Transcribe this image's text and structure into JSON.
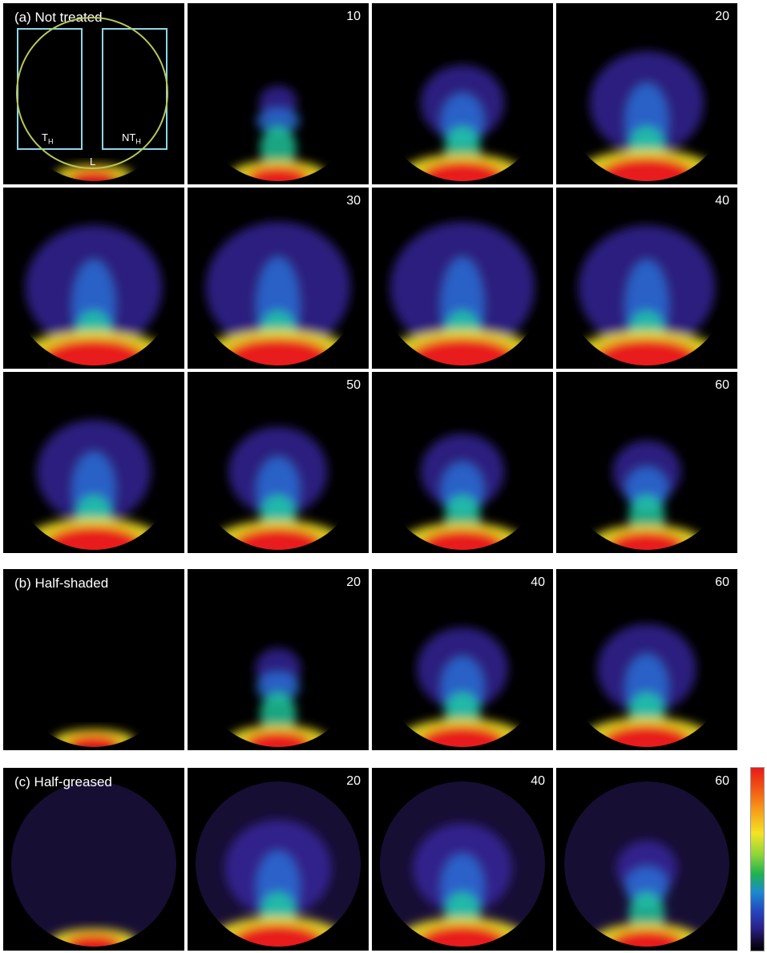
{
  "sections": [
    {
      "label": "(a) Not treated",
      "rows": 3
    },
    {
      "label": "(b) Half-shaded",
      "rows": 1
    },
    {
      "label": "(c) Half-greased",
      "rows": 1
    }
  ],
  "panels_a": [
    {
      "number": "",
      "level": 0.05
    },
    {
      "number": "10",
      "level": 0.25
    },
    {
      "number": "",
      "level": 0.55
    },
    {
      "number": "20",
      "level": 0.75
    },
    {
      "number": "",
      "level": 0.9
    },
    {
      "number": "30",
      "level": 0.95
    },
    {
      "number": "",
      "level": 0.95
    },
    {
      "number": "40",
      "level": 0.9
    },
    {
      "number": "",
      "level": 0.75
    },
    {
      "number": "50",
      "level": 0.65
    },
    {
      "number": "",
      "level": 0.55
    },
    {
      "number": "60",
      "level": 0.45
    }
  ],
  "panels_b": [
    {
      "number": "",
      "level": 0.1
    },
    {
      "number": "20",
      "level": 0.3
    },
    {
      "number": "40",
      "level": 0.6
    },
    {
      "number": "60",
      "level": 0.65
    }
  ],
  "panels_c": [
    {
      "number": "",
      "level": 0.15
    },
    {
      "number": "20",
      "level": 0.7
    },
    {
      "number": "40",
      "level": 0.65
    },
    {
      "number": "60",
      "level": 0.4
    }
  ],
  "roi_labels": {
    "left": "T",
    "left_sub": "H",
    "right": "NT",
    "right_sub": "H",
    "bottom": "L"
  },
  "colors": {
    "roi_box": "#8fd6e6",
    "roi_circle": "#b8c85a",
    "hot": "#e81a1a",
    "glow": "#3a2aa8"
  }
}
